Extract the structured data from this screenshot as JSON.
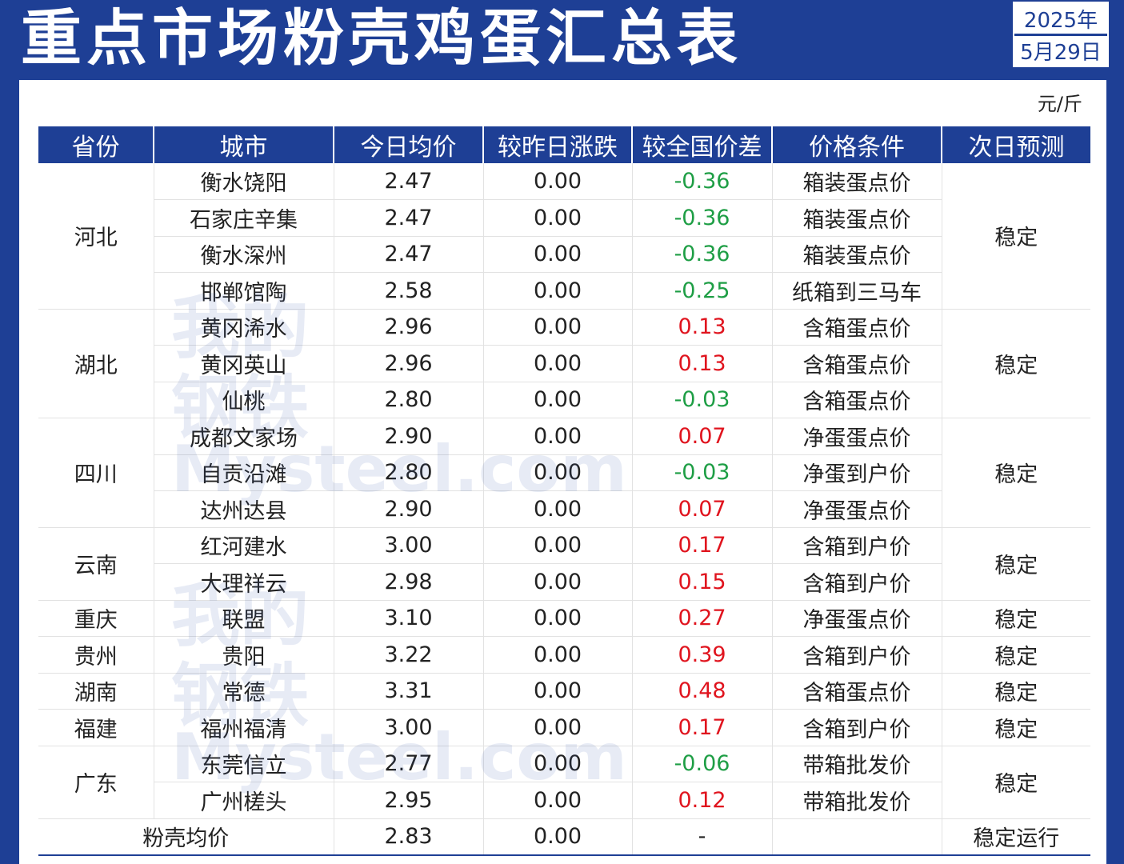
{
  "header": {
    "title": "重点市场粉壳鸡蛋汇总表",
    "year": "2025年",
    "date": "5月29日"
  },
  "unit": "元/斤",
  "columns": [
    "省份",
    "城市",
    "今日均价",
    "较昨日涨跌",
    "较全国价差",
    "价格条件",
    "次日预测"
  ],
  "groups": [
    {
      "province": "河北",
      "forecast": "稳定",
      "rows": [
        {
          "city": "衡水饶阳",
          "price": "2.47",
          "change": "0.00",
          "diff": "-0.36",
          "condition": "箱装蛋点价"
        },
        {
          "city": "石家庄辛集",
          "price": "2.47",
          "change": "0.00",
          "diff": "-0.36",
          "condition": "箱装蛋点价"
        },
        {
          "city": "衡水深州",
          "price": "2.47",
          "change": "0.00",
          "diff": "-0.36",
          "condition": "箱装蛋点价"
        },
        {
          "city": "邯郸馆陶",
          "price": "2.58",
          "change": "0.00",
          "diff": "-0.25",
          "condition": "纸箱到三马车"
        }
      ]
    },
    {
      "province": "湖北",
      "forecast": "稳定",
      "rows": [
        {
          "city": "黄冈浠水",
          "price": "2.96",
          "change": "0.00",
          "diff": "0.13",
          "condition": "含箱蛋点价"
        },
        {
          "city": "黄冈英山",
          "price": "2.96",
          "change": "0.00",
          "diff": "0.13",
          "condition": "含箱蛋点价"
        },
        {
          "city": "仙桃",
          "price": "2.80",
          "change": "0.00",
          "diff": "-0.03",
          "condition": "含箱蛋点价"
        }
      ]
    },
    {
      "province": "四川",
      "forecast": "稳定",
      "rows": [
        {
          "city": "成都文家场",
          "price": "2.90",
          "change": "0.00",
          "diff": "0.07",
          "condition": "净蛋蛋点价"
        },
        {
          "city": "自贡沿滩",
          "price": "2.80",
          "change": "0.00",
          "diff": "-0.03",
          "condition": "净蛋到户价"
        },
        {
          "city": "达州达县",
          "price": "2.90",
          "change": "0.00",
          "diff": "0.07",
          "condition": "净蛋蛋点价"
        }
      ]
    },
    {
      "province": "云南",
      "forecast": "稳定",
      "rows": [
        {
          "city": "红河建水",
          "price": "3.00",
          "change": "0.00",
          "diff": "0.17",
          "condition": "含箱到户价"
        },
        {
          "city": "大理祥云",
          "price": "2.98",
          "change": "0.00",
          "diff": "0.15",
          "condition": "含箱到户价"
        }
      ]
    },
    {
      "province": "重庆",
      "forecast": "稳定",
      "rows": [
        {
          "city": "联盟",
          "price": "3.10",
          "change": "0.00",
          "diff": "0.27",
          "condition": "净蛋蛋点价"
        }
      ]
    },
    {
      "province": "贵州",
      "forecast": "稳定",
      "rows": [
        {
          "city": "贵阳",
          "price": "3.22",
          "change": "0.00",
          "diff": "0.39",
          "condition": "含箱到户价"
        }
      ]
    },
    {
      "province": "湖南",
      "forecast": "稳定",
      "rows": [
        {
          "city": "常德",
          "price": "3.31",
          "change": "0.00",
          "diff": "0.48",
          "condition": "含箱蛋点价"
        }
      ]
    },
    {
      "province": "福建",
      "forecast": "稳定",
      "rows": [
        {
          "city": "福州福清",
          "price": "3.00",
          "change": "0.00",
          "diff": "0.17",
          "condition": "含箱到户价"
        }
      ]
    },
    {
      "province": "广东",
      "forecast": "稳定",
      "rows": [
        {
          "city": "东莞信立",
          "price": "2.77",
          "change": "0.00",
          "diff": "-0.06",
          "condition": "带箱批发价"
        },
        {
          "city": "广州槎头",
          "price": "2.95",
          "change": "0.00",
          "diff": "0.12",
          "condition": "带箱批发价"
        }
      ]
    }
  ],
  "summary": {
    "label": "粉壳均价",
    "price": "2.83",
    "change": "0.00",
    "diff": "-",
    "condition": "",
    "forecast": "稳定运行"
  },
  "colors": {
    "header_bg": "#1e3f95",
    "negative": "#1e9e45",
    "positive": "#e0141e"
  },
  "watermark": [
    "我的钢铁",
    "Mysteel.com"
  ]
}
